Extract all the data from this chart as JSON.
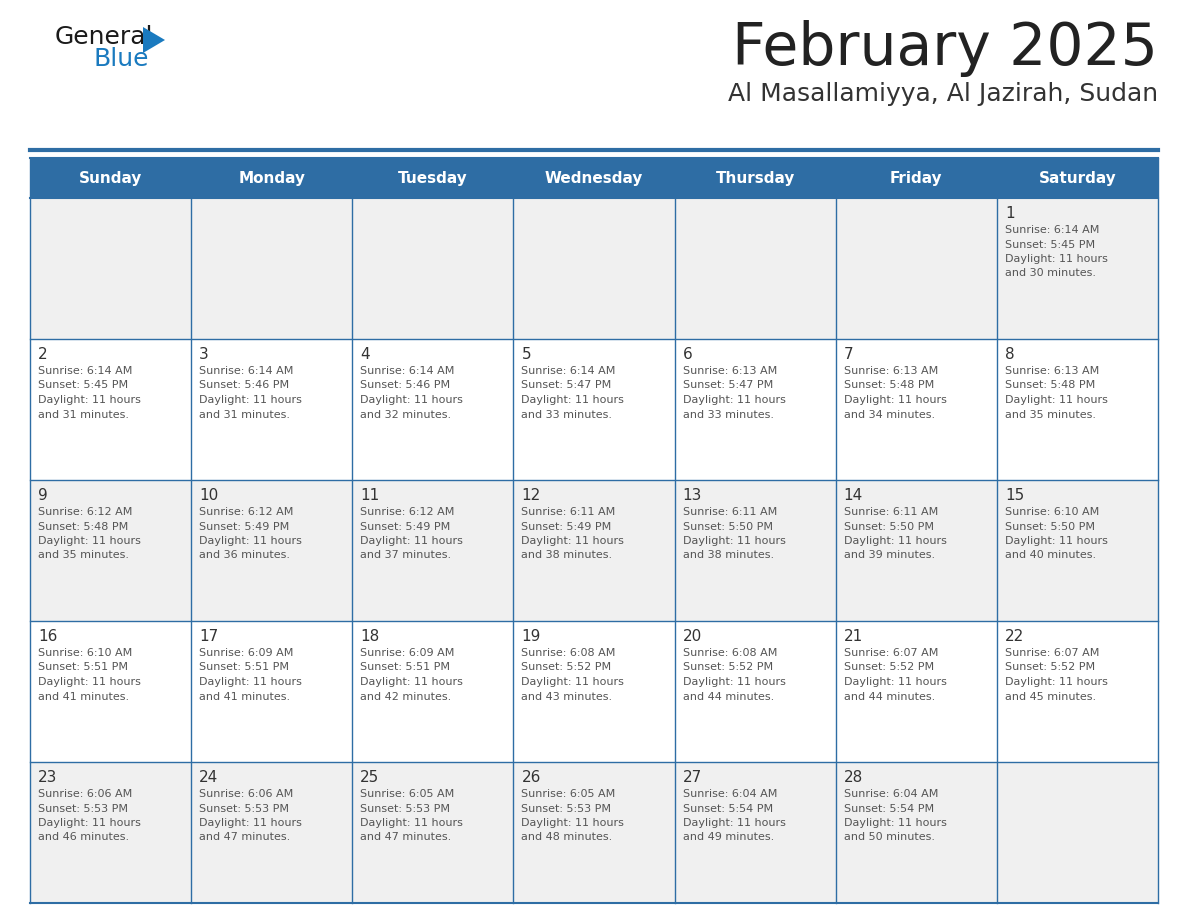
{
  "title": "February 2025",
  "subtitle": "Al Masallamiyya, Al Jazirah, Sudan",
  "header_color": "#2e6da4",
  "header_text_color": "#ffffff",
  "cell_bg_color": "#f0f0f0",
  "border_color": "#2e6da4",
  "day_names": [
    "Sunday",
    "Monday",
    "Tuesday",
    "Wednesday",
    "Thursday",
    "Friday",
    "Saturday"
  ],
  "title_color": "#222222",
  "subtitle_color": "#333333",
  "days": [
    {
      "day": 1,
      "col": 6,
      "row": 0,
      "sunrise": "6:14 AM",
      "sunset": "5:45 PM",
      "daylight": "11 hours and 30 minutes."
    },
    {
      "day": 2,
      "col": 0,
      "row": 1,
      "sunrise": "6:14 AM",
      "sunset": "5:45 PM",
      "daylight": "11 hours and 31 minutes."
    },
    {
      "day": 3,
      "col": 1,
      "row": 1,
      "sunrise": "6:14 AM",
      "sunset": "5:46 PM",
      "daylight": "11 hours and 31 minutes."
    },
    {
      "day": 4,
      "col": 2,
      "row": 1,
      "sunrise": "6:14 AM",
      "sunset": "5:46 PM",
      "daylight": "11 hours and 32 minutes."
    },
    {
      "day": 5,
      "col": 3,
      "row": 1,
      "sunrise": "6:14 AM",
      "sunset": "5:47 PM",
      "daylight": "11 hours and 33 minutes."
    },
    {
      "day": 6,
      "col": 4,
      "row": 1,
      "sunrise": "6:13 AM",
      "sunset": "5:47 PM",
      "daylight": "11 hours and 33 minutes."
    },
    {
      "day": 7,
      "col": 5,
      "row": 1,
      "sunrise": "6:13 AM",
      "sunset": "5:48 PM",
      "daylight": "11 hours and 34 minutes."
    },
    {
      "day": 8,
      "col": 6,
      "row": 1,
      "sunrise": "6:13 AM",
      "sunset": "5:48 PM",
      "daylight": "11 hours and 35 minutes."
    },
    {
      "day": 9,
      "col": 0,
      "row": 2,
      "sunrise": "6:12 AM",
      "sunset": "5:48 PM",
      "daylight": "11 hours and 35 minutes."
    },
    {
      "day": 10,
      "col": 1,
      "row": 2,
      "sunrise": "6:12 AM",
      "sunset": "5:49 PM",
      "daylight": "11 hours and 36 minutes."
    },
    {
      "day": 11,
      "col": 2,
      "row": 2,
      "sunrise": "6:12 AM",
      "sunset": "5:49 PM",
      "daylight": "11 hours and 37 minutes."
    },
    {
      "day": 12,
      "col": 3,
      "row": 2,
      "sunrise": "6:11 AM",
      "sunset": "5:49 PM",
      "daylight": "11 hours and 38 minutes."
    },
    {
      "day": 13,
      "col": 4,
      "row": 2,
      "sunrise": "6:11 AM",
      "sunset": "5:50 PM",
      "daylight": "11 hours and 38 minutes."
    },
    {
      "day": 14,
      "col": 5,
      "row": 2,
      "sunrise": "6:11 AM",
      "sunset": "5:50 PM",
      "daylight": "11 hours and 39 minutes."
    },
    {
      "day": 15,
      "col": 6,
      "row": 2,
      "sunrise": "6:10 AM",
      "sunset": "5:50 PM",
      "daylight": "11 hours and 40 minutes."
    },
    {
      "day": 16,
      "col": 0,
      "row": 3,
      "sunrise": "6:10 AM",
      "sunset": "5:51 PM",
      "daylight": "11 hours and 41 minutes."
    },
    {
      "day": 17,
      "col": 1,
      "row": 3,
      "sunrise": "6:09 AM",
      "sunset": "5:51 PM",
      "daylight": "11 hours and 41 minutes."
    },
    {
      "day": 18,
      "col": 2,
      "row": 3,
      "sunrise": "6:09 AM",
      "sunset": "5:51 PM",
      "daylight": "11 hours and 42 minutes."
    },
    {
      "day": 19,
      "col": 3,
      "row": 3,
      "sunrise": "6:08 AM",
      "sunset": "5:52 PM",
      "daylight": "11 hours and 43 minutes."
    },
    {
      "day": 20,
      "col": 4,
      "row": 3,
      "sunrise": "6:08 AM",
      "sunset": "5:52 PM",
      "daylight": "11 hours and 44 minutes."
    },
    {
      "day": 21,
      "col": 5,
      "row": 3,
      "sunrise": "6:07 AM",
      "sunset": "5:52 PM",
      "daylight": "11 hours and 44 minutes."
    },
    {
      "day": 22,
      "col": 6,
      "row": 3,
      "sunrise": "6:07 AM",
      "sunset": "5:52 PM",
      "daylight": "11 hours and 45 minutes."
    },
    {
      "day": 23,
      "col": 0,
      "row": 4,
      "sunrise": "6:06 AM",
      "sunset": "5:53 PM",
      "daylight": "11 hours and 46 minutes."
    },
    {
      "day": 24,
      "col": 1,
      "row": 4,
      "sunrise": "6:06 AM",
      "sunset": "5:53 PM",
      "daylight": "11 hours and 47 minutes."
    },
    {
      "day": 25,
      "col": 2,
      "row": 4,
      "sunrise": "6:05 AM",
      "sunset": "5:53 PM",
      "daylight": "11 hours and 47 minutes."
    },
    {
      "day": 26,
      "col": 3,
      "row": 4,
      "sunrise": "6:05 AM",
      "sunset": "5:53 PM",
      "daylight": "11 hours and 48 minutes."
    },
    {
      "day": 27,
      "col": 4,
      "row": 4,
      "sunrise": "6:04 AM",
      "sunset": "5:54 PM",
      "daylight": "11 hours and 49 minutes."
    },
    {
      "day": 28,
      "col": 5,
      "row": 4,
      "sunrise": "6:04 AM",
      "sunset": "5:54 PM",
      "daylight": "11 hours and 50 minutes."
    }
  ],
  "num_rows": 5,
  "num_cols": 7,
  "logo_general_color": "#1a1a1a",
  "logo_blue_color": "#1a7abf",
  "logo_triangle_color": "#1a7abf"
}
